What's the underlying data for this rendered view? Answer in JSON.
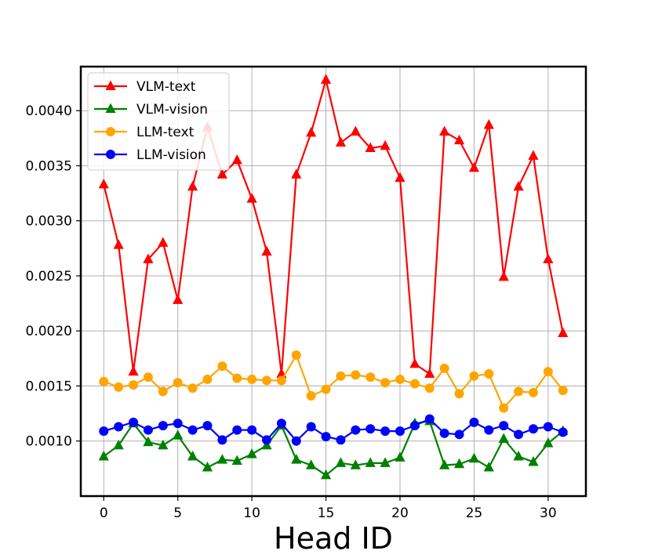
{
  "chart_data": {
    "type": "line",
    "title": "",
    "xlabel": "Head ID",
    "ylabel": "",
    "xlim": [
      -1.55,
      32.55
    ],
    "ylim": [
      0.0005,
      0.0044
    ],
    "x_ticks": [
      0,
      5,
      10,
      15,
      20,
      25,
      30
    ],
    "x_tick_labels": [
      "0",
      "5",
      "10",
      "15",
      "20",
      "25",
      "30"
    ],
    "y_ticks": [
      0.001,
      0.0015,
      0.002,
      0.0025,
      0.003,
      0.0035,
      0.004
    ],
    "y_tick_labels": [
      "0.0010",
      "0.0015",
      "0.0020",
      "0.0025",
      "0.0030",
      "0.0035",
      "0.0040"
    ],
    "grid": true,
    "legend_position": "top-left",
    "x": [
      0,
      1,
      2,
      3,
      4,
      5,
      6,
      7,
      8,
      9,
      10,
      11,
      12,
      13,
      14,
      15,
      16,
      17,
      18,
      19,
      20,
      21,
      22,
      23,
      24,
      25,
      26,
      27,
      28,
      29,
      30,
      31
    ],
    "series": [
      {
        "name": "VLM-text",
        "color": "#ff0000",
        "marker": "triangle",
        "values": [
          0.00333,
          0.00278,
          0.00163,
          0.00265,
          0.0028,
          0.00228,
          0.00331,
          0.00385,
          0.00342,
          0.00355,
          0.0032,
          0.00272,
          0.00161,
          0.00342,
          0.0038,
          0.00428,
          0.00371,
          0.00381,
          0.00366,
          0.00368,
          0.00339,
          0.0017,
          0.00161,
          0.00381,
          0.00373,
          0.00348,
          0.00387,
          0.00249,
          0.00331,
          0.00359,
          0.00265,
          0.00198
        ]
      },
      {
        "name": "VLM-vision",
        "color": "#008000",
        "marker": "triangle",
        "values": [
          0.00086,
          0.00096,
          0.00116,
          0.00099,
          0.00096,
          0.00105,
          0.00086,
          0.00076,
          0.00083,
          0.00082,
          0.00088,
          0.00096,
          0.00114,
          0.00083,
          0.00078,
          0.00069,
          0.0008,
          0.00078,
          0.0008,
          0.0008,
          0.00085,
          0.00116,
          0.00118,
          0.00078,
          0.00079,
          0.00084,
          0.00076,
          0.00102,
          0.00086,
          0.00081,
          0.00098,
          0.00109
        ]
      },
      {
        "name": "LLM-text",
        "color": "#ffa500",
        "marker": "circle",
        "values": [
          0.00154,
          0.00149,
          0.00151,
          0.00158,
          0.00145,
          0.00153,
          0.00148,
          0.00156,
          0.00168,
          0.00157,
          0.00156,
          0.00155,
          0.00155,
          0.00178,
          0.00141,
          0.00147,
          0.00159,
          0.0016,
          0.00158,
          0.00153,
          0.00156,
          0.00152,
          0.00148,
          0.00166,
          0.00143,
          0.00159,
          0.00161,
          0.0013,
          0.00145,
          0.00144,
          0.00163,
          0.00146
        ]
      },
      {
        "name": "LLM-vision",
        "color": "#0000ff",
        "marker": "circle",
        "values": [
          0.00109,
          0.00113,
          0.00117,
          0.0011,
          0.00114,
          0.00116,
          0.0011,
          0.00114,
          0.00101,
          0.0011,
          0.0011,
          0.00101,
          0.00116,
          0.001,
          0.00113,
          0.00104,
          0.00101,
          0.0011,
          0.00111,
          0.00109,
          0.00109,
          0.00114,
          0.0012,
          0.00107,
          0.00106,
          0.00117,
          0.0011,
          0.00114,
          0.00106,
          0.00111,
          0.00113,
          0.00108
        ]
      }
    ]
  }
}
